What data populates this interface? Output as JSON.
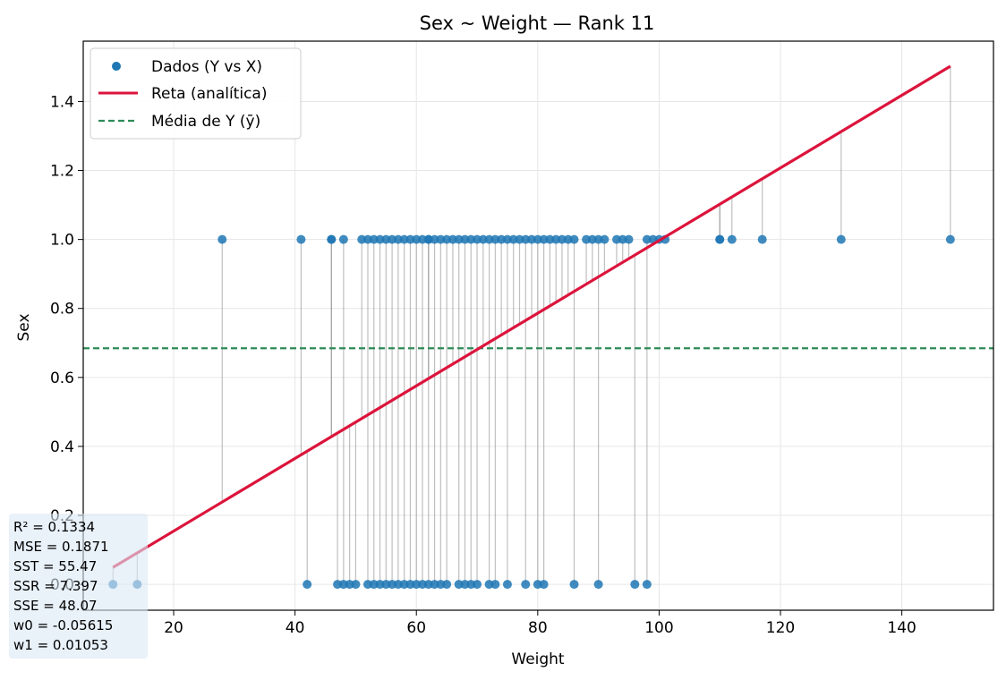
{
  "chart_data": {
    "type": "scatter",
    "title": "Sex ~ Weight — Rank 11",
    "xlabel": "Weight",
    "ylabel": "Sex",
    "xlim": [
      5.1,
      155.1
    ],
    "ylim": [
      -0.075,
      1.575
    ],
    "x_ticks": [
      20,
      40,
      60,
      80,
      100,
      120,
      140
    ],
    "y_ticks": [
      0.0,
      0.2,
      0.4,
      0.6,
      0.8,
      1.0,
      1.2,
      1.4
    ],
    "x_tick_labels": [
      "20",
      "40",
      "60",
      "80",
      "100",
      "120",
      "140"
    ],
    "y_tick_labels": [
      "0.0",
      "0.2",
      "0.4",
      "0.6",
      "0.8",
      "1.0",
      "1.2",
      "1.4"
    ],
    "grid": true,
    "legend_position": "top-left",
    "legend": {
      "scatter_label": "Dados (Y vs X)",
      "line_label": "Reta (analítica)",
      "mean_label": "Média de Y (ȳ)"
    },
    "colors": {
      "points": "#1f77b4",
      "fit_line": "#dc143c",
      "mean_line": "#2e8b57",
      "residual": "#808080",
      "stats_box": "#dbe8f5"
    },
    "fit": {
      "w0": -0.05615,
      "w1": 0.01053,
      "x_range": [
        10,
        148
      ]
    },
    "mean_y": 0.6845,
    "points_y1_x": [
      28,
      41,
      46,
      46,
      48,
      51,
      52,
      53,
      54,
      55,
      56,
      57,
      58,
      59,
      60,
      61,
      62,
      62,
      63,
      64,
      65,
      66,
      67,
      68,
      69,
      70,
      71,
      72,
      73,
      74,
      75,
      76,
      77,
      78,
      79,
      80,
      81,
      82,
      83,
      84,
      85,
      86,
      88,
      89,
      90,
      91,
      93,
      94,
      95,
      98,
      99,
      100,
      101,
      110,
      110,
      112,
      117,
      130,
      148
    ],
    "points_y0_x": [
      10,
      14,
      42,
      47,
      48,
      49,
      50,
      52,
      53,
      54,
      55,
      56,
      57,
      58,
      59,
      60,
      61,
      62,
      63,
      64,
      65,
      67,
      68,
      69,
      70,
      72,
      73,
      75,
      78,
      80,
      81,
      86,
      90,
      96,
      98
    ],
    "stats": [
      "R²  = 0.1334",
      "MSE = 0.1871",
      "SST = 55.47",
      "SSR = 7.397",
      "SSE = 48.07",
      "w0  = -0.05615",
      "w1  = 0.01053"
    ]
  }
}
